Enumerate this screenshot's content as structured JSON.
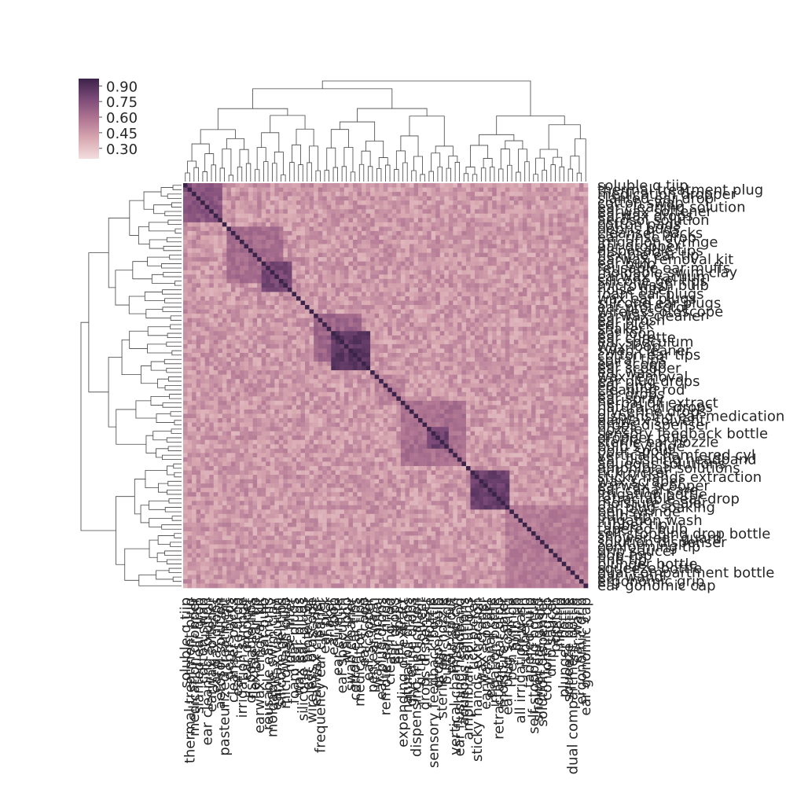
{
  "chart_data": {
    "type": "heatmap",
    "title": "",
    "xlabel": "",
    "ylabel": "",
    "colormap": [
      "#f2dede",
      "#d9a9b2",
      "#b07592",
      "#7c4a78",
      "#3b2349"
    ],
    "colorbar": {
      "min": 0.2,
      "max": 0.97,
      "ticks": [
        0.9,
        0.75,
        0.6,
        0.45,
        0.3
      ]
    },
    "grid": false,
    "dendrograms": [
      "top",
      "left"
    ],
    "row_labels": [
      "soluble q tiip",
      "thermal treatment plug",
      "medication dropper",
      "slanted ear drop",
      "cotton swab",
      "ear cleaning solution",
      "earwax softener",
      "earwax drops",
      "aerosol solution",
      "cotton pads",
      "debris buds",
      "cleanser packs",
      "ear rinse drop",
      "irrigation syringe",
      "ear dropper",
      "disposable tips",
      "flexible ear tip",
      "earwax removal kit",
      "ear bulb",
      "reusable ear muffs",
      "moldable swim clay",
      "earwax vacuum",
      "silicone gel tips",
      "microwash bulb",
      "noise filter",
      "foam ear plugs",
      "wax ear plugs",
      "silicone ear plugs",
      "ear protector",
      "wireless otoscope",
      "earwax cleaner",
      "ear brush",
      "ear pick",
      "shaker",
      "ear loop",
      "ear curette",
      "ear speculum",
      "wax loop",
      "swab cleaner",
      "cotton ear tips",
      "spiral tips",
      "ear scoop",
      "ear scooper",
      "ear wash",
      "wax removal",
      "ear plug drops",
      "ear rings",
      "cleaning rod",
      "ear drops",
      "ear spray",
      "herbal oil extract",
      "natural oil drops",
      "glycerine drops",
      "dispensing ear medication",
      "earwax solvent",
      "drops dispenser",
      "nozzle",
      "sensory feedback bottle",
      "dropper bulb",
      "sterile ear nozzle",
      "bulb syringe",
      "pour spout",
      "vertical chamfered cyl",
      "ear flushing headband",
      "aqueous solutions",
      "amphibian solutions",
      "tick picker",
      "sticky hands extraction",
      "wax scraper",
      "earwax scooper",
      "ear canal care",
      "irrigation bottle",
      "retractable ear drop",
      "moisture sealer",
      "ear plug soaking",
      "pen syringe",
      "bulb tip",
      "irrigation wash",
      "rubber tip",
      "tapered bulb",
      "self-stopping drop bottle",
      "shower ear guard",
      "solution dispenser",
      "conforming tip",
      "drip saucer",
      "pop-top",
      "fine tip",
      "plunger bottle",
      "squeeze bottle",
      "dual compartment bottle",
      "ear wand",
      "ergonomic grip",
      "ear gonomic cap"
    ],
    "col_labels": [
      "soluble q tiip",
      "thermal treatment plug",
      "medication dropper",
      "slanted ear drop",
      "cotton swab",
      "ear cleaning solution",
      "earwax softener",
      "earwax drops",
      "aerosol solution",
      "pasteurized treatment",
      "debris buds",
      "cleanser packs",
      "ear rinse drop",
      "irrigation syringe",
      "ear dropper",
      "disposable tips",
      "flexible ear tip",
      "earwax removal kit",
      "ear bulb",
      "reusable ear muffs",
      "moldable swim clay",
      "earwax vacuum",
      "silicone gel tips",
      "microwash bulb",
      "noise filter",
      "foam ear plugs",
      "wax ear plugs",
      "silicone ear plugs",
      "ear protector",
      "wireless otoscope",
      "earwax cleaner",
      "frequency ear cleaner",
      "ear pick",
      "shaker",
      "ear loop",
      "ear curette",
      "ear speculum",
      "wax loop",
      "swab cleaner",
      "cotton ear tips",
      "medication tips",
      "ear scoop",
      "ear scooper",
      "pen ear wash",
      "wax removal",
      "ear plug drops",
      "remote ear rings",
      "cleaning rod",
      "ear drops",
      "ear spray",
      "expanding oil extract",
      "natural oil drops",
      "glycerine drops",
      "dispensing medication",
      "q tip solvent",
      "drops dispenser",
      "nozzle",
      "sensory feedback bottle",
      "dropper bulb",
      "sterile ear nozzle",
      "bulb syringe",
      "pour spout",
      "vertical chamfered cyl",
      "ear flushing headband",
      "aqueous solutions",
      "amphibian solutions",
      "tick picker",
      "sticky hands extraction",
      "wax scraper",
      "earwax scooper",
      "ear canal care",
      "irrigation bottle",
      "retractable ear drop",
      "moisture sealer",
      "ear plug soaking",
      "pen syringe",
      "bulb tip",
      "all irrigation wash",
      "rubber tip",
      "tapered bulb",
      "self-stopping bottle",
      "shower ear guard",
      "solution dispenser",
      "conforming tip",
      "drip saucer",
      "pop-top",
      "fine tip",
      "plunger bottle",
      "squeeze bottle",
      "dual compartment bottle",
      "ear wand",
      "ergonomic grip",
      "ear gonomic cap"
    ],
    "clusters": [
      {
        "start": 0,
        "end": 8,
        "value": 0.72
      },
      {
        "start": 10,
        "end": 22,
        "value": 0.62
      },
      {
        "start": 18,
        "end": 24,
        "value": 0.78
      },
      {
        "start": 30,
        "end": 40,
        "value": 0.66
      },
      {
        "start": 34,
        "end": 42,
        "value": 0.86
      },
      {
        "start": 44,
        "end": 50,
        "value": 0.52
      },
      {
        "start": 50,
        "end": 64,
        "value": 0.6
      },
      {
        "start": 56,
        "end": 60,
        "value": 0.8
      },
      {
        "start": 66,
        "end": 74,
        "value": 0.84
      },
      {
        "start": 74,
        "end": 93,
        "value": 0.55
      }
    ],
    "background_value": 0.45,
    "diagonal_value": 1.0
  }
}
